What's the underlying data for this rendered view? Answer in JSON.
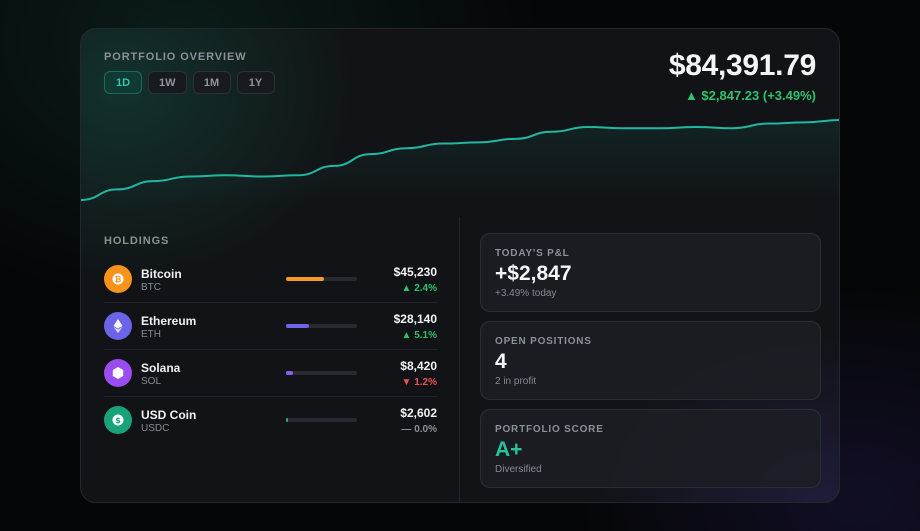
{
  "overview": {
    "label": "PORTFOLIO OVERVIEW",
    "ranges": [
      "1D",
      "1W",
      "1M",
      "1Y"
    ],
    "active_range": "1D",
    "total_value": "$84,391.79",
    "change": "▲ $2,847.23 (+3.49%)"
  },
  "holdings": {
    "label": "HOLDINGS",
    "items": [
      {
        "name": "Bitcoin",
        "ticker": "BTC",
        "value": "$45,230",
        "change": "▲ 2.4%",
        "direction": "up",
        "allocation": 0.54,
        "color": "#f7931a",
        "bar_color": "#f39c1f",
        "icon": "bitcoin-icon"
      },
      {
        "name": "Ethereum",
        "ticker": "ETH",
        "value": "$28,140",
        "change": "▲ 5.1%",
        "direction": "up",
        "allocation": 0.33,
        "color": "#6c63e8",
        "bar_color": "#6f63ea",
        "icon": "ethereum-icon"
      },
      {
        "name": "Solana",
        "ticker": "SOL",
        "value": "$8,420",
        "change": "▼ 1.2%",
        "direction": "down",
        "allocation": 0.1,
        "color": "#9a4cf0",
        "bar_color": "#8b5cf6",
        "icon": "solana-icon"
      },
      {
        "name": "USD Coin",
        "ticker": "USDC",
        "value": "$2,602",
        "change": "— 0.0%",
        "direction": "flat",
        "allocation": 0.03,
        "color": "#16a37a",
        "bar_color": "#1fae80",
        "icon": "usd-coin-icon"
      }
    ]
  },
  "stats": [
    {
      "label": "TODAY'S P&L",
      "value": "+$2,847",
      "sub": "+3.49% today",
      "accent": false
    },
    {
      "label": "OPEN POSITIONS",
      "value": "4",
      "sub": "2 in profit",
      "accent": false
    },
    {
      "label": "PORTFOLIO SCORE",
      "value": "A+",
      "sub": "Diversified",
      "accent": true
    }
  ],
  "colors": {
    "up": "#2fc36a",
    "down": "#ef5454",
    "flat": "#8b9199",
    "line": "#22b7a0"
  },
  "chart_data": {
    "type": "line",
    "series": [
      {
        "values": [
          0,
          0.9,
          1.6,
          2.0,
          2.1,
          2.0,
          2.1,
          2.9,
          3.9,
          4.4,
          4.8,
          4.9,
          5.2,
          5.8,
          6.2,
          6.1,
          6.1,
          6.2,
          6.1,
          6.5,
          6.6,
          6.8
        ]
      }
    ]
  }
}
